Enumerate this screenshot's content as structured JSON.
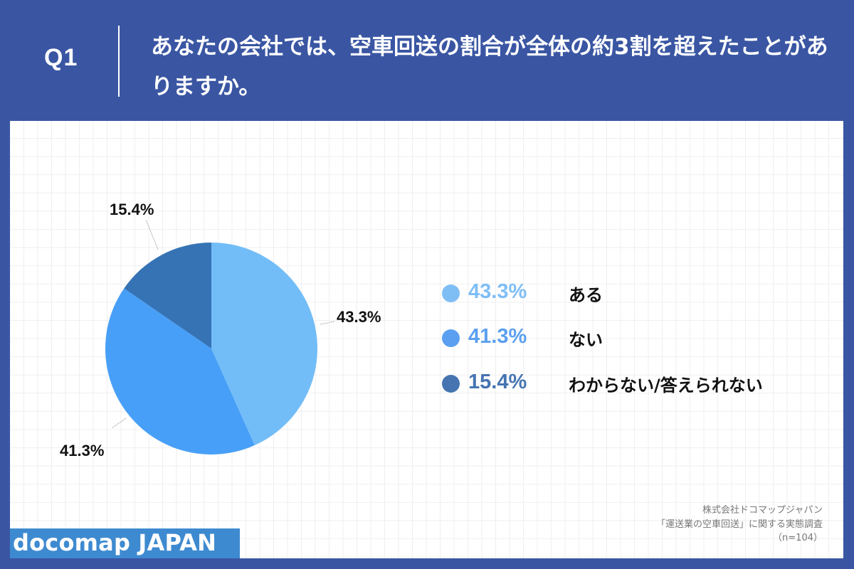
{
  "header": {
    "question_number": "Q1",
    "question_text": "あなたの会社では、空車回送の割合が全体の約3割を超えたことがありますか。"
  },
  "legend": {
    "items": [
      {
        "percent": "43.3%",
        "label": "ある",
        "color": "#7FBEF5"
      },
      {
        "percent": "41.3%",
        "label": "ない",
        "color": "#5B9FF0"
      },
      {
        "percent": "15.4%",
        "label": "わからない/答えられない",
        "color": "#4574B0"
      }
    ]
  },
  "slice_labels": {
    "a": "43.3%",
    "b": "41.3%",
    "c": "15.4%"
  },
  "source": {
    "line1": "株式会社ドコマップジャパン",
    "line2": "「運送業の空車回送」に関する実態調査",
    "line3": "（n=104）"
  },
  "logo": {
    "text": "docomap JAPAN"
  },
  "colors": {
    "background": "#3A56A3",
    "slice_aru": "#72BDF7",
    "slice_nai": "#489FF7",
    "slice_unknown": "#3573B5",
    "logo_bg": "#3E8AD0"
  },
  "chart_data": {
    "type": "pie",
    "title": "あなたの会社では、空車回送の割合が全体の約3割を超えたことがありますか。",
    "categories": [
      "ある",
      "ない",
      "わからない/答えられない"
    ],
    "values": [
      43.3,
      41.3,
      15.4
    ],
    "unit": "%",
    "colors": [
      "#72BDF7",
      "#489FF7",
      "#3573B5"
    ],
    "start_angle": "12 o'clock, clockwise",
    "legend_position": "right",
    "n": 104
  }
}
